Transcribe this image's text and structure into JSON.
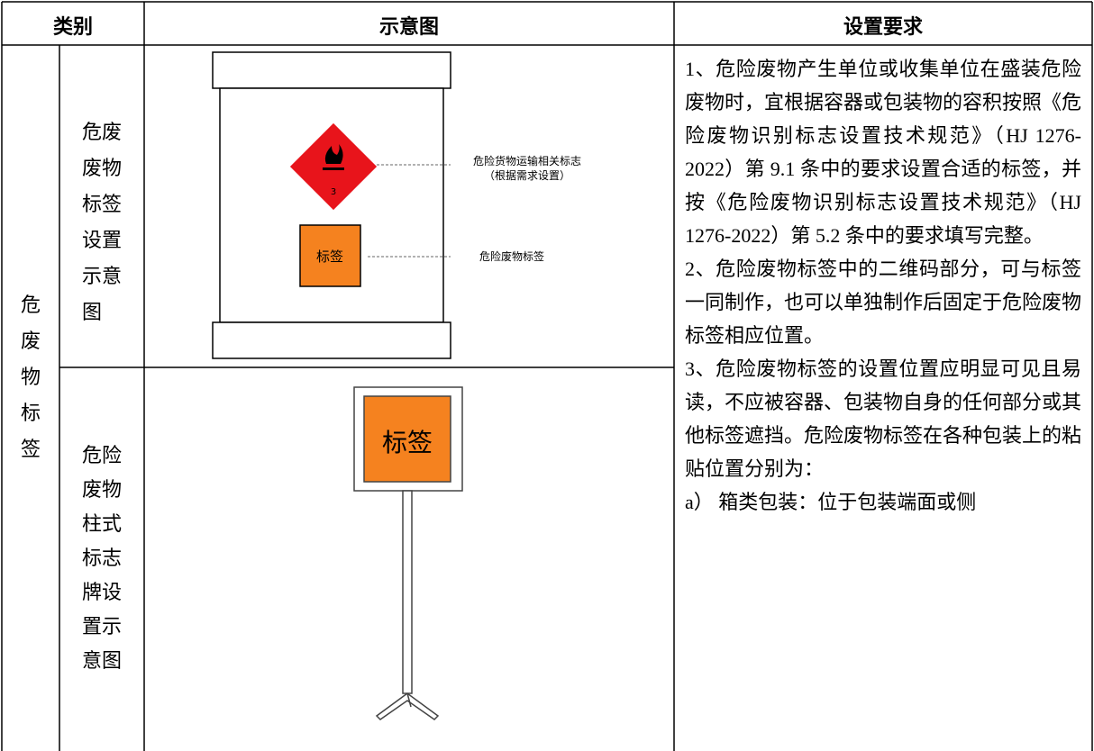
{
  "header": {
    "category": "类别",
    "diagram": "示意图",
    "requirements": "设置要求"
  },
  "group": "危废物标签",
  "rows": [
    {
      "label": "危废废物标签设置示意图",
      "diagram": {
        "transport_mark_number": "3",
        "transport_label": [
          "危险货物运输相关标志",
          "（根据需求设置）"
        ],
        "tag": "标签",
        "tag_label": "危险废物标签"
      }
    },
    {
      "label": "危险废物柱式标志牌设置示意图",
      "diagram": {
        "tag": "标签"
      }
    }
  ],
  "requirements": [
    "1、危险废物产生单位或收集单位在盛装危险废物时，宜根据容器或包装物的容积按照《危险废物识别标志设置技术规范》（HJ 1276-2022）第 9.1 条中的要求设置合适的标签，并按《危险废物识别标志设置技术规范》（HJ 1276-2022）第 5.2 条中的要求填写完整。",
    "2、危险废物标签中的二维码部分，可与标签一同制作，也可以单独制作后固定于危险废物标签相应位置。",
    "3、危险废物标签的设置位置应明显可见且易读，不应被容器、包装物自身的任何部分或其他标签遮挡。危险废物标签在各种包装上的粘贴位置分别为：",
    "a） 箱类包装：位于包装端面或侧"
  ]
}
